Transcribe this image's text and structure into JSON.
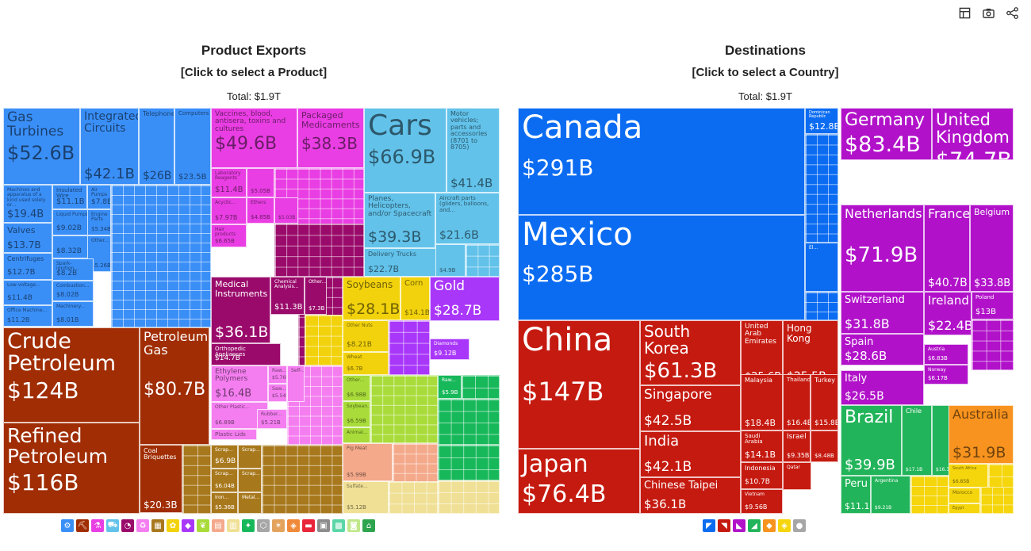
{
  "toolbar": [
    {
      "name": "table-icon",
      "glyph": "table"
    },
    {
      "name": "camera-icon",
      "glyph": "camera"
    },
    {
      "name": "share-icon",
      "glyph": "share"
    }
  ],
  "left": {
    "title": "Product Exports",
    "subtitle": "[Click to select a Product]",
    "total": "Total: $1.9T"
  },
  "right": {
    "title": "Destinations",
    "subtitle": "[Click to select a Country]",
    "total": "Total: $1.9T"
  },
  "chart_data": [
    {
      "type": "treemap",
      "title": "Product Exports",
      "subtitle": "[Click to select a Product]",
      "total": "Total: $1.9T",
      "colors": {
        "machinery": "#3a8ff7",
        "minerals": "#a02d03",
        "chemicals": "#e93ee3",
        "transportation": "#62c2ea",
        "instruments": "#9a0a6b",
        "vegetables": "#f2d20c",
        "precious_metals": "#a937fa",
        "plastics": "#f47ef0",
        "metals": "#a8781c",
        "foodstuffs": "#a9dc3a",
        "misc": "#17b85a",
        "animal": "#f4a98b",
        "paper": "#f0e095",
        "arms": "#7d7de0",
        "stone": "#a6a6a6"
      },
      "tiles": [
        {
          "label": "Gas Turbines",
          "value": "$52.6B",
          "group": "machinery"
        },
        {
          "label": "Integrated Circuits",
          "value": "$42.1B",
          "group": "machinery"
        },
        {
          "label": "Telephones",
          "value": "$26B",
          "group": "machinery"
        },
        {
          "label": "Computers",
          "value": "$23.5B",
          "group": "machinery"
        },
        {
          "label": "Machines and apparatus of a kind used solely or...",
          "value": "$19.4B",
          "group": "machinery"
        },
        {
          "label": "Insulated Wire",
          "value": "$11.1B",
          "group": "machinery"
        },
        {
          "label": "Air Pumps",
          "value": "$7.8B",
          "group": "machinery"
        },
        {
          "label": "Valves",
          "value": "$13.7B",
          "group": "machinery"
        },
        {
          "label": "Liquid Pumps",
          "value": "$9.02B",
          "group": "machinery"
        },
        {
          "label": "Engine Parts",
          "value": "$5.34B",
          "group": "machinery"
        },
        {
          "label": "Centrifuges",
          "value": "$12.7B",
          "group": "machinery"
        },
        {
          "label": "",
          "value": "$8.32B",
          "group": "machinery"
        },
        {
          "label": "Other...",
          "value": "$5.26B",
          "group": "machinery"
        },
        {
          "label": "Spark-ignition...",
          "value": "$8.2B",
          "group": "machinery"
        },
        {
          "label": "Low-voltage...",
          "value": "$11.4B",
          "group": "machinery"
        },
        {
          "label": "Combustion...",
          "value": "$8.02B",
          "group": "machinery"
        },
        {
          "label": "Office Machine...",
          "value": "$11.2B",
          "group": "machinery"
        },
        {
          "label": "Machinery...",
          "value": "$8.01B",
          "group": "machinery"
        },
        {
          "label": "Crude Petroleum",
          "value": "$124B",
          "group": "minerals"
        },
        {
          "label": "Petroleum Gas",
          "value": "$80.7B",
          "group": "minerals"
        },
        {
          "label": "Refined Petroleum",
          "value": "$116B",
          "group": "minerals"
        },
        {
          "label": "Coal Briquettes",
          "value": "$20.3B",
          "group": "minerals"
        },
        {
          "label": "Vaccines, blood, antisera, toxins and cultures",
          "value": "$49.6B",
          "group": "chemicals"
        },
        {
          "label": "Packaged Medicaments",
          "value": "$38.3B",
          "group": "chemicals"
        },
        {
          "label": "Laboratory Reagents",
          "value": "$11.4B",
          "group": "chemicals"
        },
        {
          "label": "Acyclic...",
          "value": "$7.97B",
          "group": "chemicals"
        },
        {
          "label": "Ethers",
          "value": "$4.85B",
          "group": "chemicals"
        },
        {
          "label": "Hair products",
          "value": "$6.65B",
          "group": "chemicals"
        },
        {
          "label": "",
          "value": "$5.05B",
          "group": "chemicals"
        },
        {
          "label": "",
          "value": "$5.03B",
          "group": "chemicals"
        },
        {
          "label": "Cars",
          "value": "$66.9B",
          "group": "transportation"
        },
        {
          "label": "Motor vehicles; parts and accessories (8701 to 8705)",
          "value": "$41.4B",
          "group": "transportation"
        },
        {
          "label": "Planes, Helicopters, and/or Spacecraft",
          "value": "$39.3B",
          "group": "transportation"
        },
        {
          "label": "Aircraft parts (gliders, balloons, and...",
          "value": "$21.6B",
          "group": "transportation"
        },
        {
          "label": "Delivery Trucks",
          "value": "$22.7B",
          "group": "transportation"
        },
        {
          "label": "",
          "value": "$4.9B",
          "group": "transportation"
        },
        {
          "label": "Medical Instruments",
          "value": "$36.1B",
          "group": "instruments"
        },
        {
          "label": "Chemical Analysis...",
          "value": "$11.3B",
          "group": "instruments"
        },
        {
          "label": "Other...",
          "value": "$7.3B",
          "group": "instruments"
        },
        {
          "label": "Orthopedic Appliances",
          "value": "$14.7B",
          "group": "instruments"
        },
        {
          "label": "Soybeans",
          "value": "$28.1B",
          "group": "vegetables"
        },
        {
          "label": "Corn",
          "value": "$14.1B",
          "group": "vegetables"
        },
        {
          "label": "Other Nuts",
          "value": "$8.21B",
          "group": "vegetables"
        },
        {
          "label": "Wheat",
          "value": "$6.7B",
          "group": "vegetables"
        },
        {
          "label": "Gold",
          "value": "$28.7B",
          "group": "precious_metals"
        },
        {
          "label": "Diamonds",
          "value": "$9.12B",
          "group": "precious_metals"
        },
        {
          "label": "Ethylene Polymers",
          "value": "$16.4B",
          "group": "plastics"
        },
        {
          "label": "Raw...",
          "value": "$5.76B",
          "group": "plastics"
        },
        {
          "label": "Saw...",
          "value": "$5.54B",
          "group": "plastics"
        },
        {
          "label": "Self-...",
          "value": "",
          "group": "plastics"
        },
        {
          "label": "Other Plastic...",
          "value": "$6.89B",
          "group": "plastics"
        },
        {
          "label": "Rubber...",
          "value": "$5.21B",
          "group": "plastics"
        },
        {
          "label": "Plastic Lids",
          "value": "",
          "group": "plastics"
        },
        {
          "label": "Scrap...",
          "value": "$6.9B",
          "group": "metals"
        },
        {
          "label": "Scrap...",
          "value": "",
          "group": "metals"
        },
        {
          "label": "Scrap...",
          "value": "$6.04B",
          "group": "metals"
        },
        {
          "label": "Scrap...",
          "value": "",
          "group": "metals"
        },
        {
          "label": "Iron...",
          "value": "$5.36B",
          "group": "metals"
        },
        {
          "label": "Metal...",
          "value": "",
          "group": "metals"
        },
        {
          "label": "Other...",
          "value": "$6.98B",
          "group": "foodstuffs"
        },
        {
          "label": "Soybean...",
          "value": "$6.59B",
          "group": "foodstuffs"
        },
        {
          "label": "Animal...",
          "value": "",
          "group": "foodstuffs"
        },
        {
          "label": "Raw...",
          "value": "$5.9B",
          "group": "misc"
        },
        {
          "label": "Pig Meat",
          "value": "$5.99B",
          "group": "animal"
        },
        {
          "label": "Sulfate...",
          "value": "$5.12B",
          "group": "paper"
        }
      ]
    },
    {
      "type": "treemap",
      "title": "Destinations",
      "subtitle": "[Click to select a Country]",
      "total": "Total: $1.9T",
      "colors": {
        "north_america": "#0b6cf2",
        "asia": "#c51a10",
        "europe": "#b112c9",
        "south_america": "#22b45a",
        "oceania": "#f7931e",
        "africa": "#f5d50c"
      },
      "tiles": [
        {
          "label": "Canada",
          "value": "$291B",
          "group": "north_america"
        },
        {
          "label": "Dominican Republic",
          "value": "$12.8B",
          "group": "north_america"
        },
        {
          "label": "Mexico",
          "value": "$285B",
          "group": "north_america"
        },
        {
          "label": "El...",
          "value": "",
          "group": "north_america"
        },
        {
          "label": "Germany",
          "value": "$83.4B",
          "group": "europe"
        },
        {
          "label": "United Kingdom",
          "value": "$74.7B",
          "group": "europe"
        },
        {
          "label": "Netherlands",
          "value": "$71.9B",
          "group": "europe"
        },
        {
          "label": "France",
          "value": "$40.7B",
          "group": "europe"
        },
        {
          "label": "Belgium",
          "value": "$33.8B",
          "group": "europe"
        },
        {
          "label": "Switzerland",
          "value": "$31.8B",
          "group": "europe"
        },
        {
          "label": "Ireland",
          "value": "$22.4B",
          "group": "europe"
        },
        {
          "label": "Poland",
          "value": "$13B",
          "group": "europe"
        },
        {
          "label": "Spain",
          "value": "$28.6B",
          "group": "europe"
        },
        {
          "label": "Austria",
          "value": "$6.83B",
          "group": "europe"
        },
        {
          "label": "Norway",
          "value": "$6.17B",
          "group": "europe"
        },
        {
          "label": "Italy",
          "value": "$26.5B",
          "group": "europe"
        },
        {
          "label": "China",
          "value": "$147B",
          "group": "asia"
        },
        {
          "label": "South Korea",
          "value": "$61.3B",
          "group": "asia"
        },
        {
          "label": "United Arab Emirates",
          "value": "$25.6B",
          "group": "asia"
        },
        {
          "label": "Hong Kong",
          "value": "$25.5B",
          "group": "asia"
        },
        {
          "label": "Singapore",
          "value": "$42.5B",
          "group": "asia"
        },
        {
          "label": "Malaysia",
          "value": "$18.4B",
          "group": "asia"
        },
        {
          "label": "Thailand",
          "value": "$16.4B",
          "group": "asia"
        },
        {
          "label": "Turkey",
          "value": "$15.8B",
          "group": "asia"
        },
        {
          "label": "Japan",
          "value": "$76.4B",
          "group": "asia"
        },
        {
          "label": "India",
          "value": "$42.1B",
          "group": "asia"
        },
        {
          "label": "Saudi Arabia",
          "value": "$14.1B",
          "group": "asia"
        },
        {
          "label": "Israel",
          "value": "$9.35B",
          "group": "asia"
        },
        {
          "label": "",
          "value": "$8.48B",
          "group": "asia"
        },
        {
          "label": "Indonesia",
          "value": "$10.7B",
          "group": "asia"
        },
        {
          "label": "Qatar",
          "value": "",
          "group": "asia"
        },
        {
          "label": "Chinese Taipei",
          "value": "$36.1B",
          "group": "asia"
        },
        {
          "label": "Vietnam",
          "value": "$9.56B",
          "group": "asia"
        },
        {
          "label": "Brazil",
          "value": "$39.9B",
          "group": "south_america"
        },
        {
          "label": "Chile",
          "value": "$17.1B",
          "group": "south_america"
        },
        {
          "label": "",
          "value": "$16.3B",
          "group": "south_america"
        },
        {
          "label": "Peru",
          "value": "$11.1B",
          "group": "south_america"
        },
        {
          "label": "Argentina",
          "value": "$9.21B",
          "group": "south_america"
        },
        {
          "label": "Australia",
          "value": "$31.9B",
          "group": "oceania"
        },
        {
          "label": "South Africa",
          "value": "$6.85B",
          "group": "africa"
        },
        {
          "label": "Morocco",
          "value": "",
          "group": "africa"
        },
        {
          "label": "Egypt",
          "value": "",
          "group": "africa"
        }
      ]
    }
  ],
  "legend_left": [
    {
      "name": "machinery-icon",
      "color": "#3a8ff7",
      "glyph": "⚙"
    },
    {
      "name": "minerals-icon",
      "color": "#a02d03",
      "glyph": "⛏"
    },
    {
      "name": "chemicals-icon",
      "color": "#e93ee3",
      "glyph": "⚗"
    },
    {
      "name": "transportation-icon",
      "color": "#62c2ea",
      "glyph": "⛟"
    },
    {
      "name": "instruments-icon",
      "color": "#9a0a6b",
      "glyph": "◔"
    },
    {
      "name": "plastics-icon",
      "color": "#f47ef0",
      "glyph": "♻"
    },
    {
      "name": "metals-icon",
      "color": "#a8781c",
      "glyph": "▦"
    },
    {
      "name": "vegetables-icon",
      "color": "#f2d20c",
      "glyph": "✿"
    },
    {
      "name": "precious-metals-icon",
      "color": "#a937fa",
      "glyph": "◆"
    },
    {
      "name": "foodstuffs-icon",
      "color": "#a9dc3a",
      "glyph": "❦"
    },
    {
      "name": "animal-products-icon",
      "color": "#f4a98b",
      "glyph": "▤"
    },
    {
      "name": "paper-icon",
      "color": "#f0e095",
      "glyph": "▥"
    },
    {
      "name": "textiles-icon",
      "color": "#17b85a",
      "glyph": "✦"
    },
    {
      "name": "stone-icon",
      "color": "#a6a6a6",
      "glyph": "⬡"
    },
    {
      "name": "wood-icon",
      "color": "#e3a35d",
      "glyph": "✶"
    },
    {
      "name": "animal-hides-icon",
      "color": "#f08a3a",
      "glyph": "◈"
    },
    {
      "name": "arms-icon",
      "color": "#e9253a",
      "glyph": "▬"
    },
    {
      "name": "miscellaneous-icon",
      "color": "#8c8c8c",
      "glyph": "▣"
    },
    {
      "name": "footwear-icon",
      "color": "#5cd6a7",
      "glyph": "▩"
    },
    {
      "name": "animal-fat-icon",
      "color": "#c0e88a",
      "glyph": "◙"
    },
    {
      "name": "art-icon",
      "color": "#2ea44f",
      "glyph": "⌂"
    }
  ],
  "legend_right": [
    {
      "name": "north-america-icon",
      "color": "#0b6cf2",
      "glyph": "◤"
    },
    {
      "name": "asia-icon",
      "color": "#c51a10",
      "glyph": "◥"
    },
    {
      "name": "europe-icon",
      "color": "#b112c9",
      "glyph": "◣"
    },
    {
      "name": "south-america-icon",
      "color": "#22b45a",
      "glyph": "◢"
    },
    {
      "name": "oceania-icon",
      "color": "#f7931e",
      "glyph": "◆"
    },
    {
      "name": "africa-icon",
      "color": "#f5d50c",
      "glyph": "◈"
    },
    {
      "name": "other-icon",
      "color": "#a6a6a6",
      "glyph": "●"
    }
  ]
}
